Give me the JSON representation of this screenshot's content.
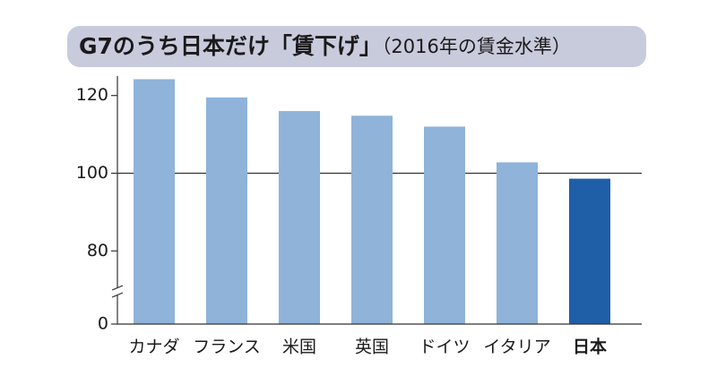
{
  "chart_data": {
    "type": "bar",
    "title": "G7のうち日本だけ「賃下げ」",
    "subtitle": "（2016年の賃金水準）",
    "categories": [
      "カナダ",
      "フランス",
      "米国",
      "英国",
      "ドイツ",
      "イタリア",
      "日本"
    ],
    "values": [
      124.2,
      119.5,
      116,
      114.8,
      112,
      102.8,
      98.6
    ],
    "colors": [
      "#8fb3d9",
      "#8fb3d9",
      "#8fb3d9",
      "#8fb3d9",
      "#8fb3d9",
      "#8fb3d9",
      "#1f5fa8"
    ],
    "bold_categories": [
      false,
      false,
      false,
      false,
      false,
      false,
      true
    ],
    "ylim": [
      0,
      125
    ],
    "yticks": [
      0,
      80,
      100,
      120
    ],
    "axis_break": [
      0,
      75
    ],
    "reference_line": 100,
    "grid": false
  }
}
